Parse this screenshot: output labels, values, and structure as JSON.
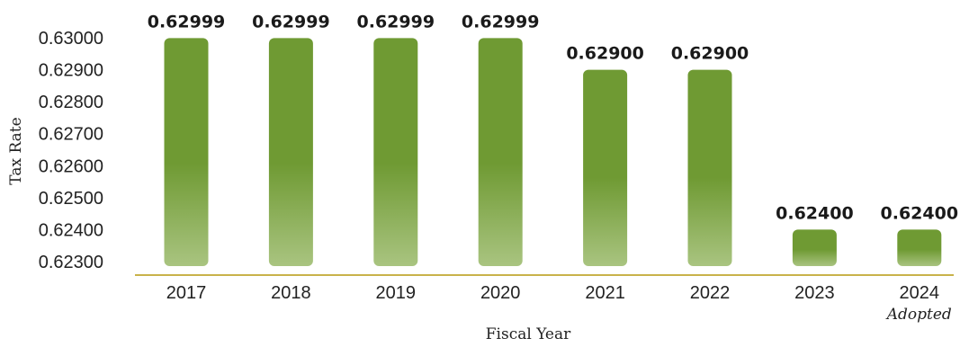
{
  "chart_data": {
    "type": "bar",
    "title": "",
    "xlabel": "Fiscal Year",
    "ylabel": "Tax Rate",
    "categories": [
      "2017",
      "2018",
      "2019",
      "2020",
      "2021",
      "2022",
      "2023",
      "2024"
    ],
    "category_sublabels": [
      "",
      "",
      "",
      "",
      "",
      "",
      "",
      "Adopted"
    ],
    "values": [
      0.62999,
      0.62999,
      0.62999,
      0.62999,
      0.629,
      0.629,
      0.624,
      0.624
    ],
    "data_labels": [
      "0.62999",
      "0.62999",
      "0.62999",
      "0.62999",
      "0.62900",
      "0.62900",
      "0.62400",
      "0.62400"
    ],
    "y_ticks": [
      "0.62300",
      "0.62400",
      "0.62500",
      "0.62600",
      "0.62700",
      "0.62800",
      "0.62900",
      "0.63000"
    ],
    "ylim": [
      0.623,
      0.63
    ],
    "grid": false,
    "legend": "none",
    "colors": {
      "bar_top": "#6f9a33",
      "bar_mid": "#6f9a33",
      "bar_bottom": "#a9c480",
      "baseline": "#c9b24a"
    }
  }
}
